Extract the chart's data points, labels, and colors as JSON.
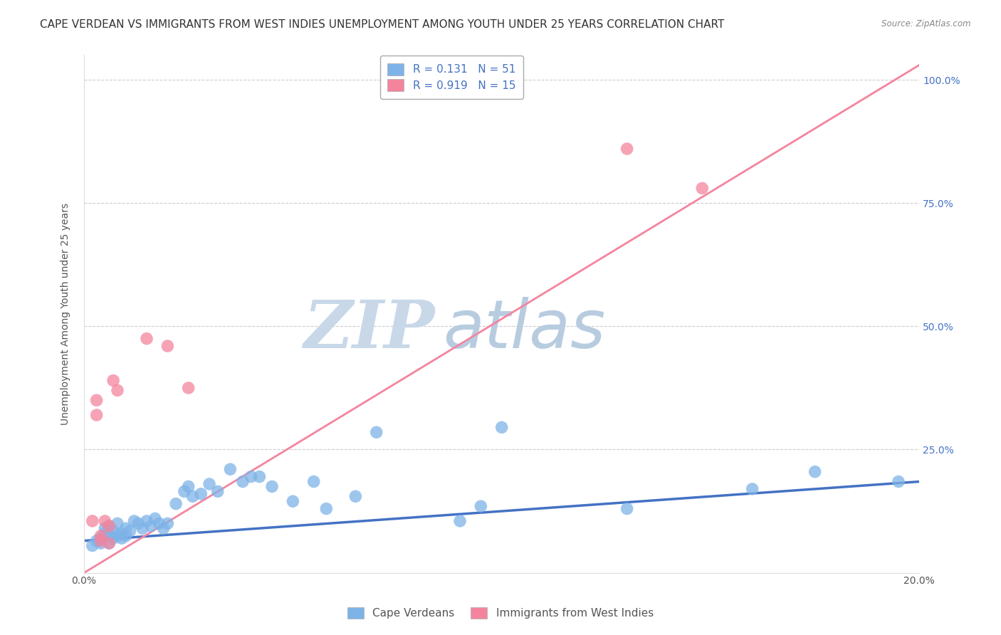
{
  "title": "CAPE VERDEAN VS IMMIGRANTS FROM WEST INDIES UNEMPLOYMENT AMONG YOUTH UNDER 25 YEARS CORRELATION CHART",
  "source": "Source: ZipAtlas.com",
  "ylabel": "Unemployment Among Youth under 25 years",
  "xlim": [
    0.0,
    0.2
  ],
  "ylim": [
    0.0,
    1.05
  ],
  "x_ticks": [
    0.0,
    0.05,
    0.1,
    0.15,
    0.2
  ],
  "x_tick_labels": [
    "0.0%",
    "",
    "",
    "",
    "20.0%"
  ],
  "y_ticks": [
    0.0,
    0.25,
    0.5,
    0.75,
    1.0
  ],
  "y_tick_labels_right": [
    "",
    "25.0%",
    "50.0%",
    "75.0%",
    "100.0%"
  ],
  "legend_labels": [
    "Cape Verdeans",
    "Immigrants from West Indies"
  ],
  "R_blue": 0.131,
  "N_blue": 51,
  "R_pink": 0.919,
  "N_pink": 15,
  "blue_color": "#7eb3e8",
  "pink_color": "#f4849e",
  "blue_line_color": "#4472c4",
  "pink_line_color": "#f4849e",
  "watermark_zip": "ZIP",
  "watermark_atlas": "atlas",
  "blue_scatter_x": [
    0.002,
    0.003,
    0.004,
    0.004,
    0.005,
    0.005,
    0.006,
    0.006,
    0.006,
    0.007,
    0.007,
    0.008,
    0.008,
    0.009,
    0.009,
    0.01,
    0.01,
    0.011,
    0.012,
    0.013,
    0.014,
    0.015,
    0.016,
    0.017,
    0.018,
    0.019,
    0.02,
    0.022,
    0.024,
    0.025,
    0.026,
    0.028,
    0.03,
    0.032,
    0.035,
    0.038,
    0.04,
    0.042,
    0.045,
    0.05,
    0.055,
    0.058,
    0.065,
    0.07,
    0.09,
    0.095,
    0.1,
    0.13,
    0.16,
    0.175,
    0.195
  ],
  "blue_scatter_y": [
    0.055,
    0.065,
    0.07,
    0.06,
    0.09,
    0.08,
    0.095,
    0.075,
    0.06,
    0.085,
    0.07,
    0.1,
    0.075,
    0.08,
    0.07,
    0.09,
    0.075,
    0.085,
    0.105,
    0.1,
    0.09,
    0.105,
    0.095,
    0.11,
    0.1,
    0.09,
    0.1,
    0.14,
    0.165,
    0.175,
    0.155,
    0.16,
    0.18,
    0.165,
    0.21,
    0.185,
    0.195,
    0.195,
    0.175,
    0.145,
    0.185,
    0.13,
    0.155,
    0.285,
    0.105,
    0.135,
    0.295,
    0.13,
    0.17,
    0.205,
    0.185
  ],
  "pink_scatter_x": [
    0.002,
    0.003,
    0.003,
    0.004,
    0.004,
    0.005,
    0.006,
    0.006,
    0.007,
    0.008,
    0.015,
    0.02,
    0.025,
    0.13,
    0.148
  ],
  "pink_scatter_y": [
    0.105,
    0.35,
    0.32,
    0.075,
    0.065,
    0.105,
    0.06,
    0.095,
    0.39,
    0.37,
    0.475,
    0.46,
    0.375,
    0.86,
    0.78
  ],
  "blue_line_x": [
    0.0,
    0.2
  ],
  "blue_line_y": [
    0.065,
    0.185
  ],
  "pink_line_x": [
    0.0,
    0.2
  ],
  "pink_line_y": [
    0.0,
    1.03
  ],
  "background_color": "#ffffff",
  "grid_color": "#cccccc",
  "title_fontsize": 11,
  "axis_fontsize": 10,
  "tick_fontsize": 10,
  "legend_fontsize": 11,
  "watermark_color_zip": "#c8d8e8",
  "watermark_color_atlas": "#b8cce0",
  "watermark_fontsize": 68,
  "tick_color_right": "#4472c4",
  "tick_color_x": "#555555"
}
